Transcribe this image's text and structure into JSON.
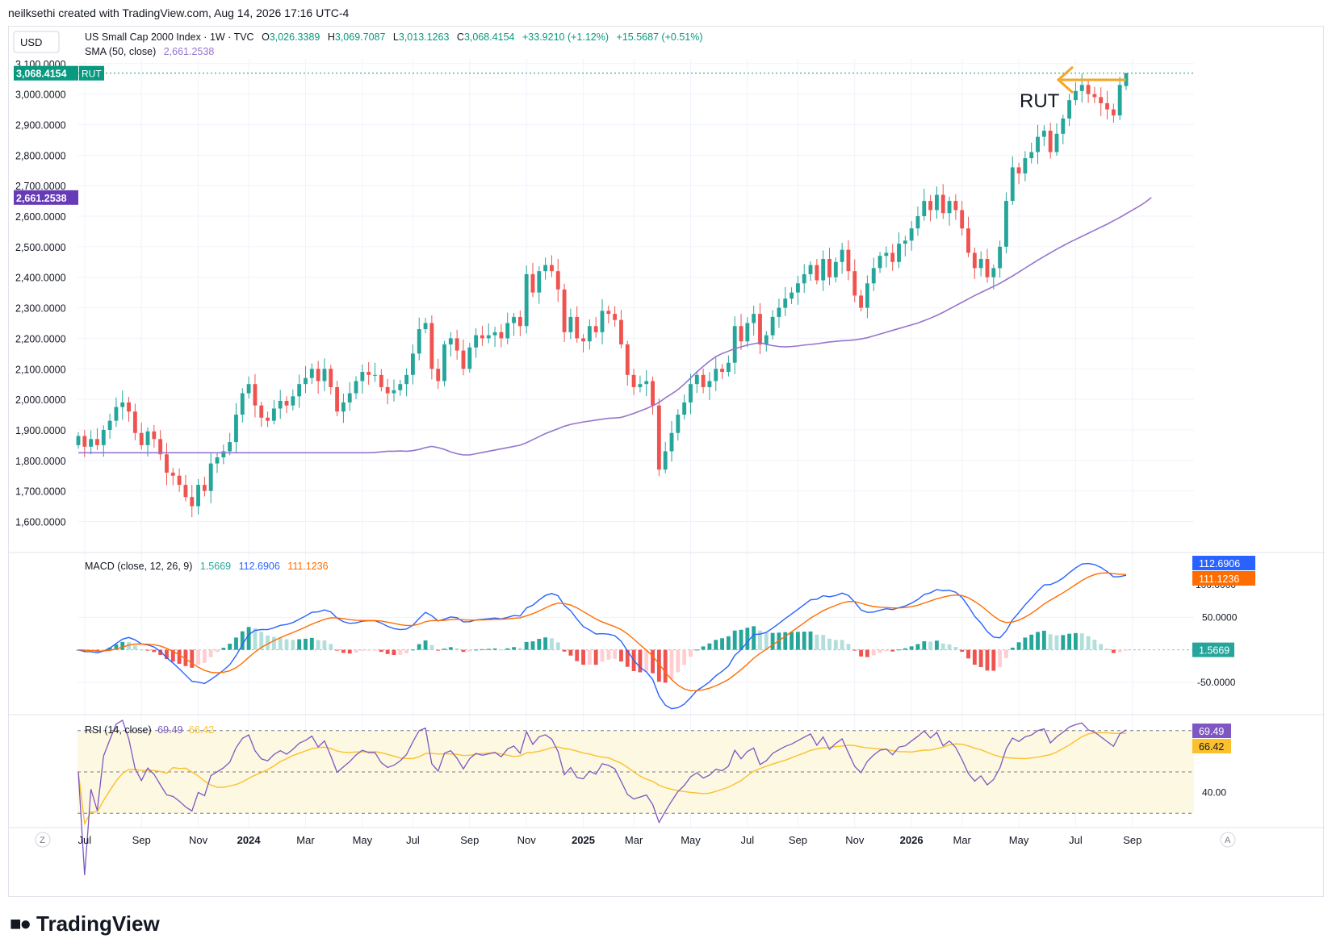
{
  "header": {
    "attribution": "neilksethi created with TradingView.com, Aug 14, 2026 17:16 UTC-4"
  },
  "footer": {
    "logo_text": "TradingView"
  },
  "chart_data": {
    "type": "candlestick",
    "currency_button": "USD",
    "corner_left": "Z",
    "corner_right": "A",
    "legend": {
      "symbol": "US Small Cap 2000 Index · 1W · TVC",
      "o_label": "O",
      "open": "3,026.3389",
      "h_label": "H",
      "high": "3,069.7087",
      "l_label": "L",
      "low": "3,013.1263",
      "c_label": "C",
      "close": "3,068.4154",
      "change": "+33.9210 (+1.12%)",
      "ext_change": "+15.5687 (+0.51%)",
      "sma_label": "SMA (50, close)",
      "sma_value": "2,661.2538"
    },
    "price_labels": {
      "last": "3,068.4154",
      "ticker": "RUT",
      "sma": "2,661.2538"
    },
    "annotation": "RUT",
    "y_axis_ticks": [
      "3,100.0000",
      "3,000.0000",
      "2,900.0000",
      "2,800.0000",
      "2,700.0000",
      "2,600.0000",
      "2,500.0000",
      "2,400.0000",
      "2,300.0000",
      "2,200.0000",
      "2,100.0000",
      "2,000.0000",
      "1,900.0000",
      "1,800.0000",
      "1,700.0000",
      "1,600.0000"
    ],
    "y_axis_values": [
      3100,
      3000,
      2900,
      2800,
      2700,
      2600,
      2500,
      2400,
      2300,
      2200,
      2100,
      2000,
      1900,
      1800,
      1700,
      1600
    ],
    "ylim": [
      1530,
      3110
    ],
    "x_axis_ticks": [
      {
        "label": "Jul",
        "week": 1
      },
      {
        "label": "Sep",
        "week": 10
      },
      {
        "label": "Nov",
        "week": 19
      },
      {
        "label": "2024",
        "week": 27,
        "bold": true
      },
      {
        "label": "Mar",
        "week": 36
      },
      {
        "label": "May",
        "week": 45
      },
      {
        "label": "Jul",
        "week": 53
      },
      {
        "label": "Sep",
        "week": 62
      },
      {
        "label": "Nov",
        "week": 71
      },
      {
        "label": "2025",
        "week": 80,
        "bold": true
      },
      {
        "label": "Mar",
        "week": 88
      },
      {
        "label": "May",
        "week": 97
      },
      {
        "label": "Jul",
        "week": 106
      },
      {
        "label": "Sep",
        "week": 114
      },
      {
        "label": "Nov",
        "week": 123
      },
      {
        "label": "2026",
        "week": 132,
        "bold": true
      },
      {
        "label": "Mar",
        "week": 140
      },
      {
        "label": "May",
        "week": 149
      },
      {
        "label": "Jul",
        "week": 158
      },
      {
        "label": "Sep",
        "week": 167
      }
    ],
    "close_series": [
      1880,
      1845,
      1870,
      1850,
      1900,
      1930,
      1975,
      1990,
      1960,
      1890,
      1850,
      1895,
      1870,
      1820,
      1760,
      1750,
      1720,
      1680,
      1650,
      1720,
      1700,
      1790,
      1810,
      1830,
      1860,
      1950,
      2020,
      2050,
      1980,
      1940,
      1930,
      1970,
      1995,
      1980,
      2010,
      2050,
      2070,
      2100,
      2060,
      2100,
      2040,
      1960,
      1990,
      2020,
      2060,
      2090,
      2080,
      2080,
      2040,
      2020,
      2030,
      2050,
      2080,
      2150,
      2230,
      2250,
      2100,
      2060,
      2180,
      2200,
      2160,
      2100,
      2170,
      2210,
      2200,
      2210,
      2220,
      2200,
      2250,
      2270,
      2240,
      2410,
      2350,
      2420,
      2440,
      2420,
      2360,
      2220,
      2270,
      2200,
      2190,
      2240,
      2220,
      2290,
      2280,
      2260,
      2180,
      2080,
      2040,
      2050,
      2060,
      1980,
      1770,
      1830,
      1890,
      1950,
      1990,
      2050,
      2080,
      2040,
      2060,
      2100,
      2090,
      2120,
      2240,
      2190,
      2250,
      2280,
      2180,
      2210,
      2270,
      2300,
      2330,
      2350,
      2380,
      2410,
      2440,
      2390,
      2460,
      2400,
      2450,
      2490,
      2420,
      2340,
      2300,
      2380,
      2430,
      2470,
      2480,
      2450,
      2510,
      2520,
      2560,
      2600,
      2650,
      2620,
      2670,
      2610,
      2650,
      2620,
      2560,
      2480,
      2430,
      2460,
      2400,
      2430,
      2500,
      2650,
      2760,
      2740,
      2790,
      2810,
      2860,
      2880,
      2810,
      2870,
      2920,
      2980,
      3010,
      3030,
      3000,
      2990,
      2970,
      2950,
      2930,
      3030,
      3068.4154
    ],
    "sma_series": [
      1825,
      1825,
      1826,
      1828,
      1830,
      1830,
      1831,
      1830,
      1832,
      1836,
      1842,
      1846,
      1842,
      1836,
      1828,
      1822,
      1818,
      1818,
      1822,
      1826,
      1830,
      1834,
      1838,
      1842,
      1846,
      1850,
      1858,
      1868,
      1878,
      1888,
      1896,
      1904,
      1912,
      1918,
      1922,
      1926,
      1929,
      1932,
      1935,
      1938,
      1939,
      1941,
      1947,
      1954,
      1962,
      1970,
      1979,
      1990,
      2005,
      2018,
      2032,
      2050,
      2070,
      2090,
      2108,
      2125,
      2140,
      2150,
      2158,
      2166,
      2172,
      2178,
      2182,
      2186,
      2180,
      2176,
      2173,
      2172,
      2173,
      2175,
      2178,
      2180,
      2182,
      2185,
      2188,
      2190,
      2192,
      2193,
      2195,
      2198,
      2202,
      2208,
      2214,
      2220,
      2226,
      2232,
      2238,
      2244,
      2250,
      2258,
      2266,
      2275,
      2285,
      2296,
      2307,
      2318,
      2329,
      2340,
      2350,
      2360,
      2370,
      2380,
      2392,
      2404,
      2417,
      2430,
      2443,
      2456,
      2468,
      2480,
      2492,
      2503,
      2514,
      2524,
      2534,
      2544,
      2554,
      2564,
      2574,
      2585,
      2596,
      2608,
      2620,
      2632,
      2645,
      2661.2538
    ],
    "sma_start_week": 45,
    "macd": {
      "label": "MACD (close, 12, 26, 9)",
      "hist_value": "1.5669",
      "macd_value": "112.6906",
      "signal_value": "111.1236",
      "ticks": [
        "50.0000",
        "-50.0000"
      ],
      "tick_values": [
        50,
        -50
      ],
      "hidden_tick": "100.0000",
      "ylim": [
        -90,
        140
      ]
    },
    "rsi": {
      "label": "RSI (14, close)",
      "value": "69.49",
      "ma_value": "66.42",
      "ticks": [
        "40.00"
      ],
      "tick_values": [
        40
      ],
      "ylim": [
        25,
        75
      ],
      "band": [
        30,
        70
      ]
    },
    "colors": {
      "up": "#26a69a",
      "down": "#ef5350",
      "sma": "#9575cd",
      "macd": "#2962ff",
      "signal": "#ff6d00",
      "rsi": "#7e57c2",
      "rsi_ma": "#fbc02d",
      "annotation_arrow": "#f5a623",
      "last_label": "#089981",
      "sma_label": "#673ab7",
      "grid": "#f0f3fa"
    }
  }
}
